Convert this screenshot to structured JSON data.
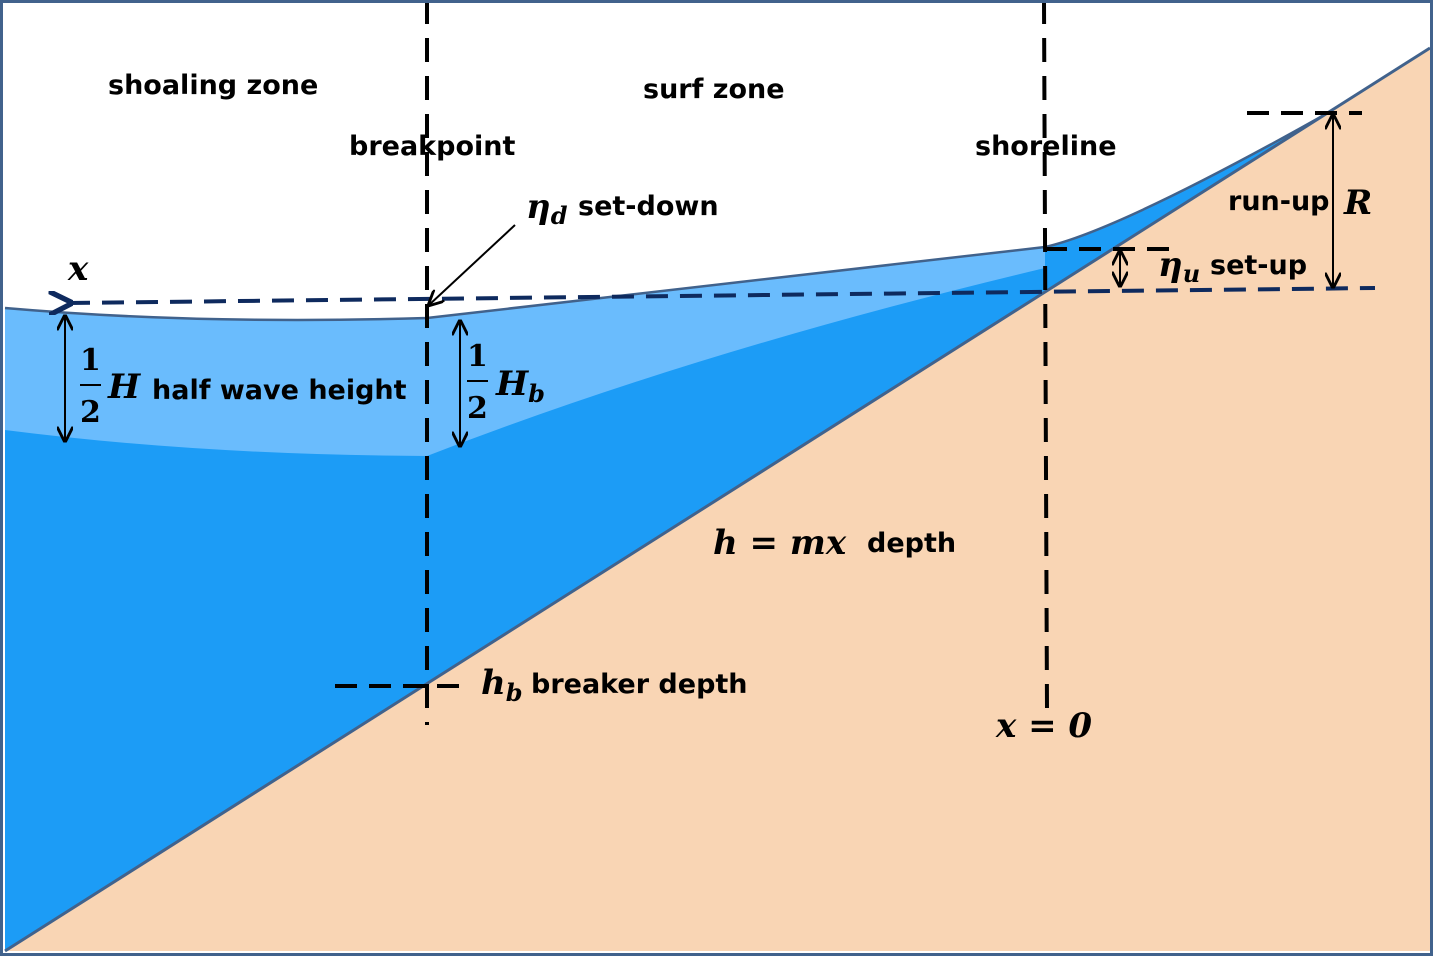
{
  "zones": {
    "shoaling": "shoaling zone",
    "surf": "surf zone"
  },
  "markers": {
    "breakpoint": "breakpoint",
    "shoreline": "shoreline"
  },
  "setdown": {
    "symbol": "η",
    "subscript": "d",
    "label": "set-down"
  },
  "setup": {
    "symbol": "η",
    "subscript": "u",
    "label": "set-up"
  },
  "runup": {
    "label": "run-up",
    "symbol": "R"
  },
  "axis": {
    "x_symbol": "x",
    "origin": "x = 0"
  },
  "half_wave": {
    "numerator": "1",
    "denominator": "2",
    "symbol": "H",
    "label": "half wave height"
  },
  "half_breaker": {
    "numerator": "1",
    "denominator": "2",
    "symbol": "H",
    "subscript": "b"
  },
  "depth": {
    "equation": "h = mx",
    "label": "depth"
  },
  "breaker_depth": {
    "symbol": "h",
    "subscript": "b",
    "label": "breaker depth"
  },
  "colors": {
    "sand": "#f9d5b4",
    "deep_water": "#1c9cf6",
    "wave_band": "#6abcfd",
    "mean_water_line": "#0e2a5e",
    "frame": "#41628c"
  }
}
